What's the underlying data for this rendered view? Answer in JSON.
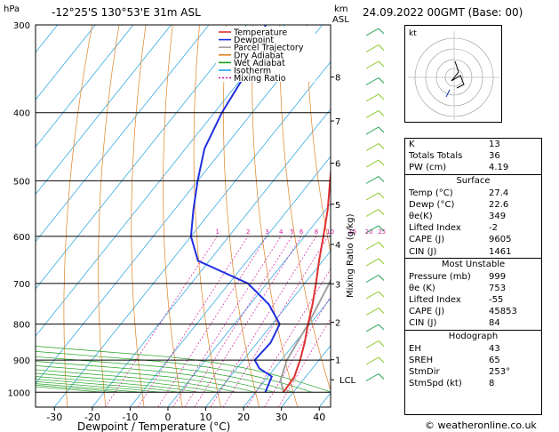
{
  "header": {
    "hpa_label": "hPa",
    "location": "-12°25'S 130°53'E 31m ASL",
    "km_label": "km",
    "asl_label": "ASL",
    "datetime": "24.09.2022 00GMT (Base: 00)"
  },
  "legend": [
    "Temperature",
    "Dewpoint",
    "Parcel Trajectory",
    "Dry Adiabat",
    "Wet Adiabat",
    "Isotherm",
    "Mixing Ratio"
  ],
  "colors": {
    "temperature": "#e03030",
    "dewpoint": "#2030e0",
    "parcel": "#a0a0a0",
    "dry_adiabat": "#e08020",
    "wet_adiabat": "#20a020",
    "isotherm": "#20a0e0",
    "mixing_ratio": "#d020a0"
  },
  "chart_data": {
    "type": "line",
    "title": "",
    "xlabel": "Dewpoint / Temperature (°C)",
    "ylabel": "Mixing Ratio (g/kg)",
    "x_ticks": [
      "-30",
      "-20",
      "-10",
      "0",
      "10",
      "20",
      "30",
      "40"
    ],
    "pressure_ticks": [
      "300",
      "400",
      "500",
      "600",
      "700",
      "800",
      "900",
      "1000"
    ],
    "km_ticks": [
      "8",
      "7",
      "6",
      "5",
      "4",
      "3",
      "2",
      "1"
    ],
    "lcl_label": "LCL",
    "mixing_ratio_labels": [
      "1",
      "2",
      "3",
      "4",
      "5",
      "6",
      "8",
      "10",
      "15",
      "20",
      "25"
    ],
    "xlim": [
      -35,
      43
    ],
    "plim": [
      1050,
      300
    ],
    "temperature": {
      "p": [
        1000,
        950,
        925,
        900,
        850,
        800,
        750,
        700,
        650,
        600,
        550,
        500,
        450,
        400,
        350,
        300
      ],
      "t": [
        27.4,
        27,
        26,
        25,
        22.5,
        19.5,
        16.5,
        13,
        9,
        5,
        0.5,
        -5,
        -11,
        -18,
        -27,
        -37
      ]
    },
    "dewpoint": {
      "p": [
        1000,
        950,
        925,
        900,
        850,
        800,
        750,
        700,
        650,
        600,
        550,
        500,
        450,
        400,
        350,
        300
      ],
      "t": [
        22.6,
        21,
        16,
        13,
        13.5,
        12,
        5,
        -5,
        -23,
        -30,
        -35,
        -40,
        -45,
        -48,
        -50,
        -55
      ]
    },
    "parcel": {
      "p": [
        1000,
        960,
        900,
        800,
        700,
        600,
        500,
        400,
        300
      ],
      "t": [
        27.4,
        24,
        21.5,
        19.5,
        16.5,
        12,
        7,
        -1,
        -12
      ]
    }
  },
  "hodograph": {
    "label": "kt"
  },
  "indices": {
    "rows1": [
      {
        "k": "K",
        "v": "13"
      },
      {
        "k": "Totals Totals",
        "v": "36"
      },
      {
        "k": "PW (cm)",
        "v": "4.19"
      }
    ],
    "surface_title": "Surface",
    "surface": [
      {
        "k": "Temp (°C)",
        "v": "27.4"
      },
      {
        "k": "Dewp (°C)",
        "v": "22.6"
      },
      {
        "k": "θe(K)",
        "v": "349"
      },
      {
        "k": "Lifted Index",
        "v": "-2"
      },
      {
        "k": "CAPE (J)",
        "v": "9605"
      },
      {
        "k": "CIN (J)",
        "v": "1461"
      }
    ],
    "mu_title": "Most Unstable",
    "mu": [
      {
        "k": "Pressure (mb)",
        "v": "999"
      },
      {
        "k": "θe (K)",
        "v": "753"
      },
      {
        "k": "Lifted Index",
        "v": "-55"
      },
      {
        "k": "CAPE (J)",
        "v": "45853"
      },
      {
        "k": "CIN (J)",
        "v": "84"
      }
    ],
    "hodo_title": "Hodograph",
    "hodo": [
      {
        "k": "EH",
        "v": "43"
      },
      {
        "k": "SREH",
        "v": "65"
      },
      {
        "k": "StmDir",
        "v": "253°"
      },
      {
        "k": "StmSpd (kt)",
        "v": "8"
      }
    ]
  },
  "footer": {
    "copyright": "© weatheronline.co.uk"
  }
}
